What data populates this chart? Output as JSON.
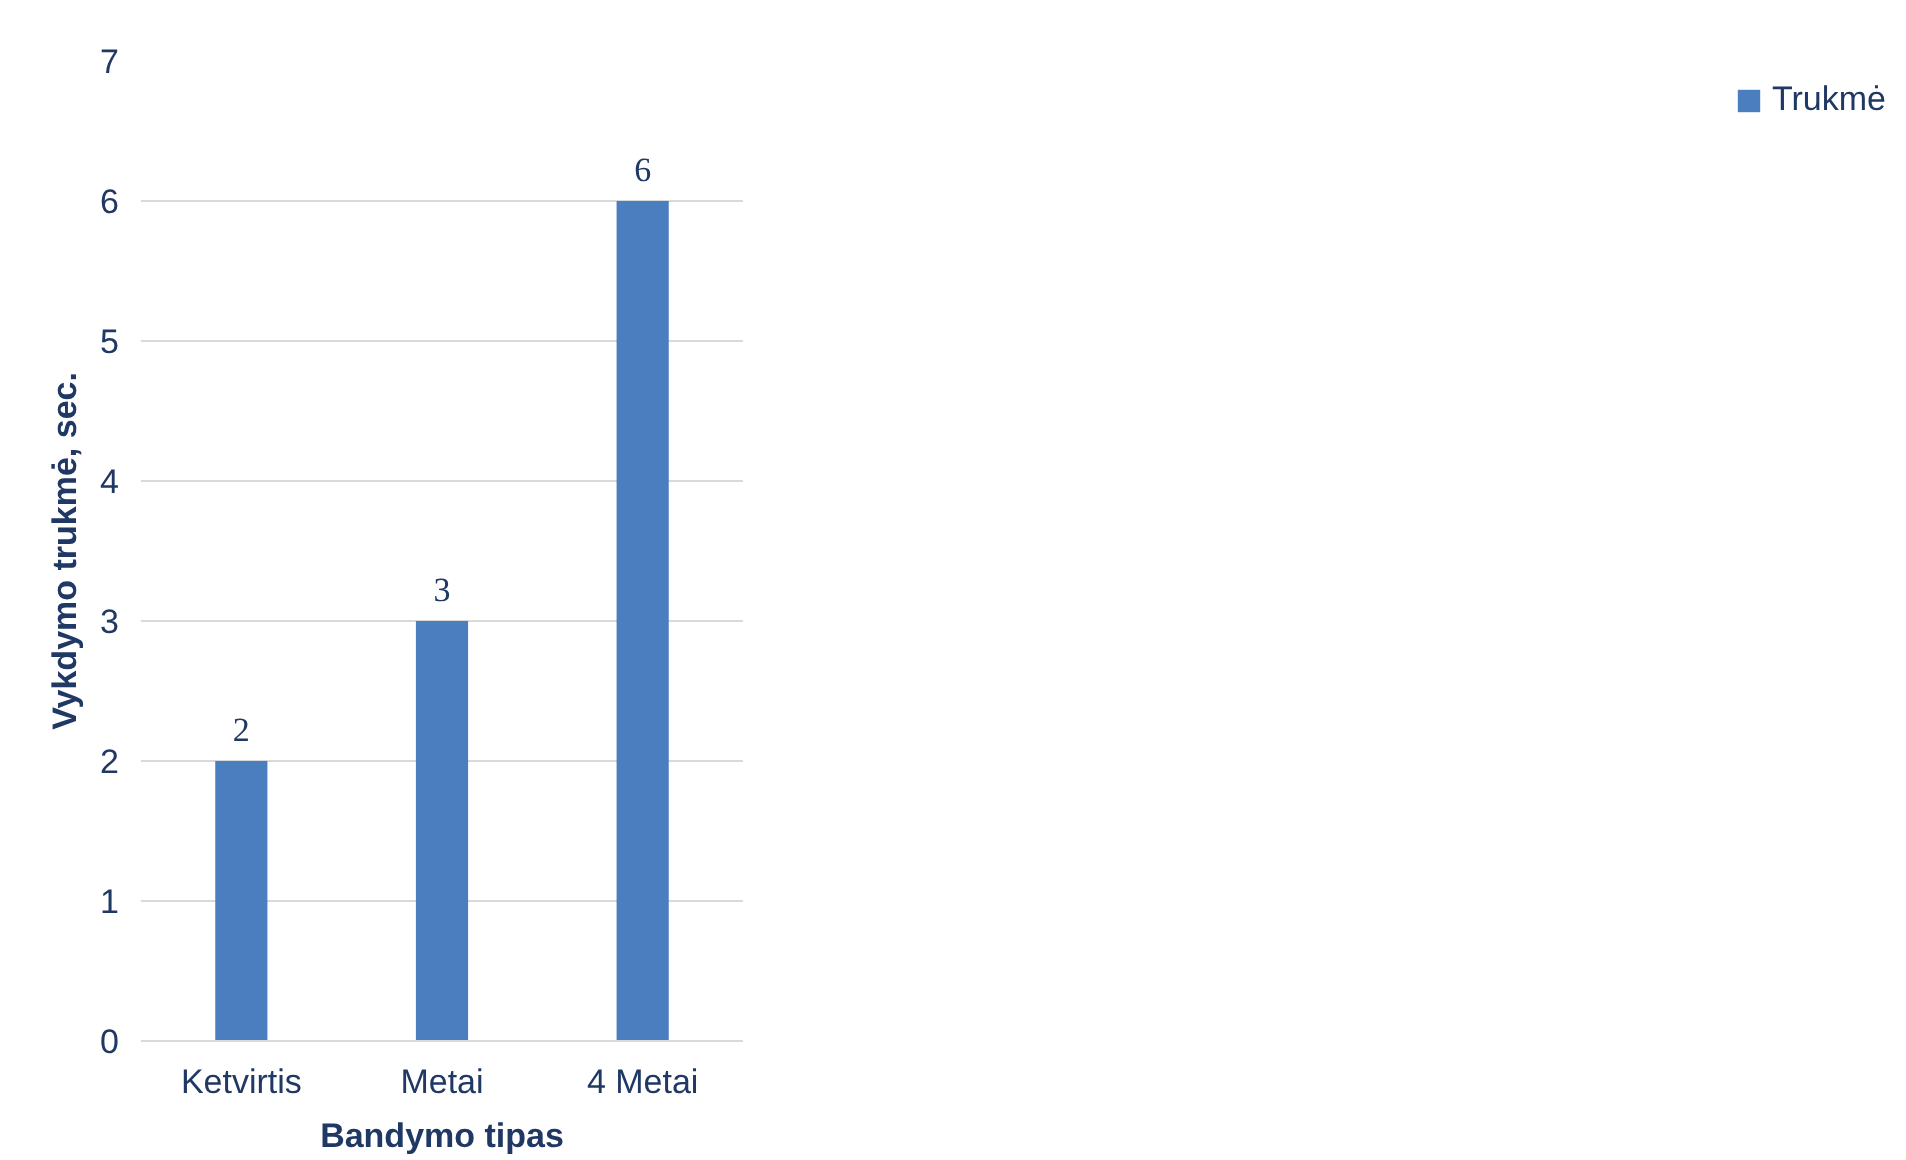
{
  "chart_data": {
    "type": "bar",
    "xlabel": "Bandymo tipas",
    "ylabel": "Vykdymo trukmė, sec.",
    "categories": [
      "Ketvirtis",
      "Metai",
      "4 Metai"
    ],
    "series": [
      {
        "name": "Trukmė",
        "color": "#4a7ebf",
        "values": [
          2,
          3,
          6
        ]
      }
    ],
    "ylim": [
      0,
      7
    ],
    "yticks": [
      0,
      1,
      2,
      3,
      4,
      5,
      6,
      7
    ],
    "grid": "y",
    "legend": "right",
    "data_labels": true
  }
}
